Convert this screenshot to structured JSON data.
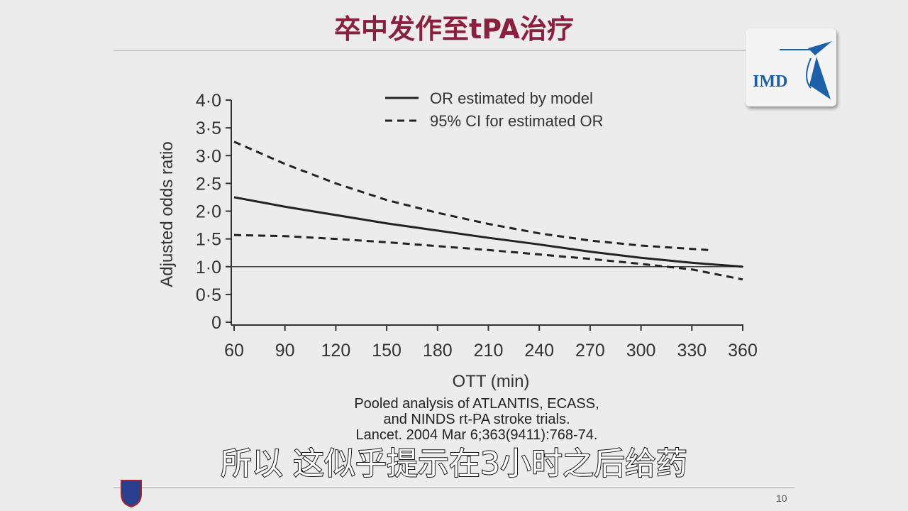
{
  "slide": {
    "title": "卒中发作至tPA治疗",
    "page_number": "10",
    "logo_text": "IMD",
    "citation": [
      "Pooled analysis of ATLANTIS, ECASS,",
      "and NINDS rt-PA stroke trials.",
      "Lancet. 2004 Mar 6;363(9411):768-74."
    ],
    "subtitle": "所以  这似乎提示在3小时之后给药"
  },
  "chart_data": {
    "type": "line",
    "xlabel": "OTT (min)",
    "ylabel": "Adjusted odds ratio",
    "xlim": [
      60,
      360
    ],
    "ylim": [
      0,
      4
    ],
    "xticks": [
      "60",
      "90",
      "120",
      "150",
      "180",
      "210",
      "240",
      "270",
      "300",
      "330",
      "360"
    ],
    "yticks": [
      "0",
      "0·5",
      "1·0",
      "1·5",
      "2·0",
      "2·5",
      "3·0",
      "3·5",
      "4·0"
    ],
    "reference_line": 1.0,
    "legend_position": "top-right",
    "series": [
      {
        "name": "OR estimated by model",
        "style": "solid",
        "x": [
          60,
          90,
          120,
          150,
          180,
          210,
          240,
          270,
          300,
          330,
          360
        ],
        "y": [
          2.25,
          2.08,
          1.93,
          1.78,
          1.65,
          1.52,
          1.4,
          1.27,
          1.16,
          1.07,
          1.0
        ]
      },
      {
        "name": "95% CI for estimated OR",
        "style": "dashed",
        "x": [
          60,
          90,
          120,
          150,
          180,
          210,
          240,
          270,
          300,
          340
        ],
        "y": [
          3.25,
          2.85,
          2.5,
          2.2,
          1.97,
          1.77,
          1.6,
          1.47,
          1.38,
          1.3
        ]
      },
      {
        "name": "",
        "style": "dashed",
        "x": [
          60,
          90,
          120,
          150,
          180,
          210,
          240,
          270,
          300,
          330,
          360
        ],
        "y": [
          1.57,
          1.55,
          1.5,
          1.44,
          1.37,
          1.3,
          1.22,
          1.14,
          1.05,
          0.95,
          0.77
        ]
      }
    ]
  },
  "colors": {
    "title": "#8a1f3e",
    "logo": "#1d5fa8"
  }
}
